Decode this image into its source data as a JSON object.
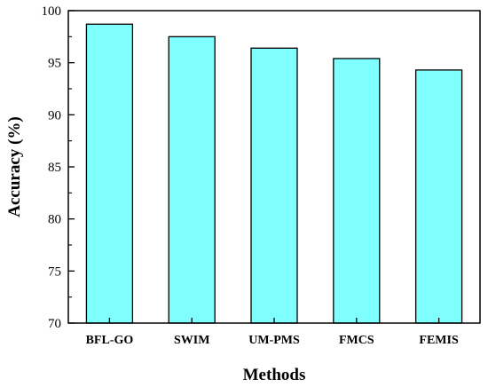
{
  "chart_data": {
    "type": "bar",
    "categories": [
      "BFL-GO",
      "SWIM",
      "UM-PMS",
      "FMCS",
      "FEMIS"
    ],
    "values": [
      98.7,
      97.5,
      96.4,
      95.4,
      94.3
    ],
    "xlabel": "Methods",
    "ylabel": "Accuracy (%)",
    "ylim": [
      70,
      100
    ],
    "yticks": [
      70,
      75,
      80,
      85,
      90,
      95,
      100
    ],
    "grid": false,
    "bar_color": "#80ffff",
    "bar_edge_color": "#000000"
  }
}
